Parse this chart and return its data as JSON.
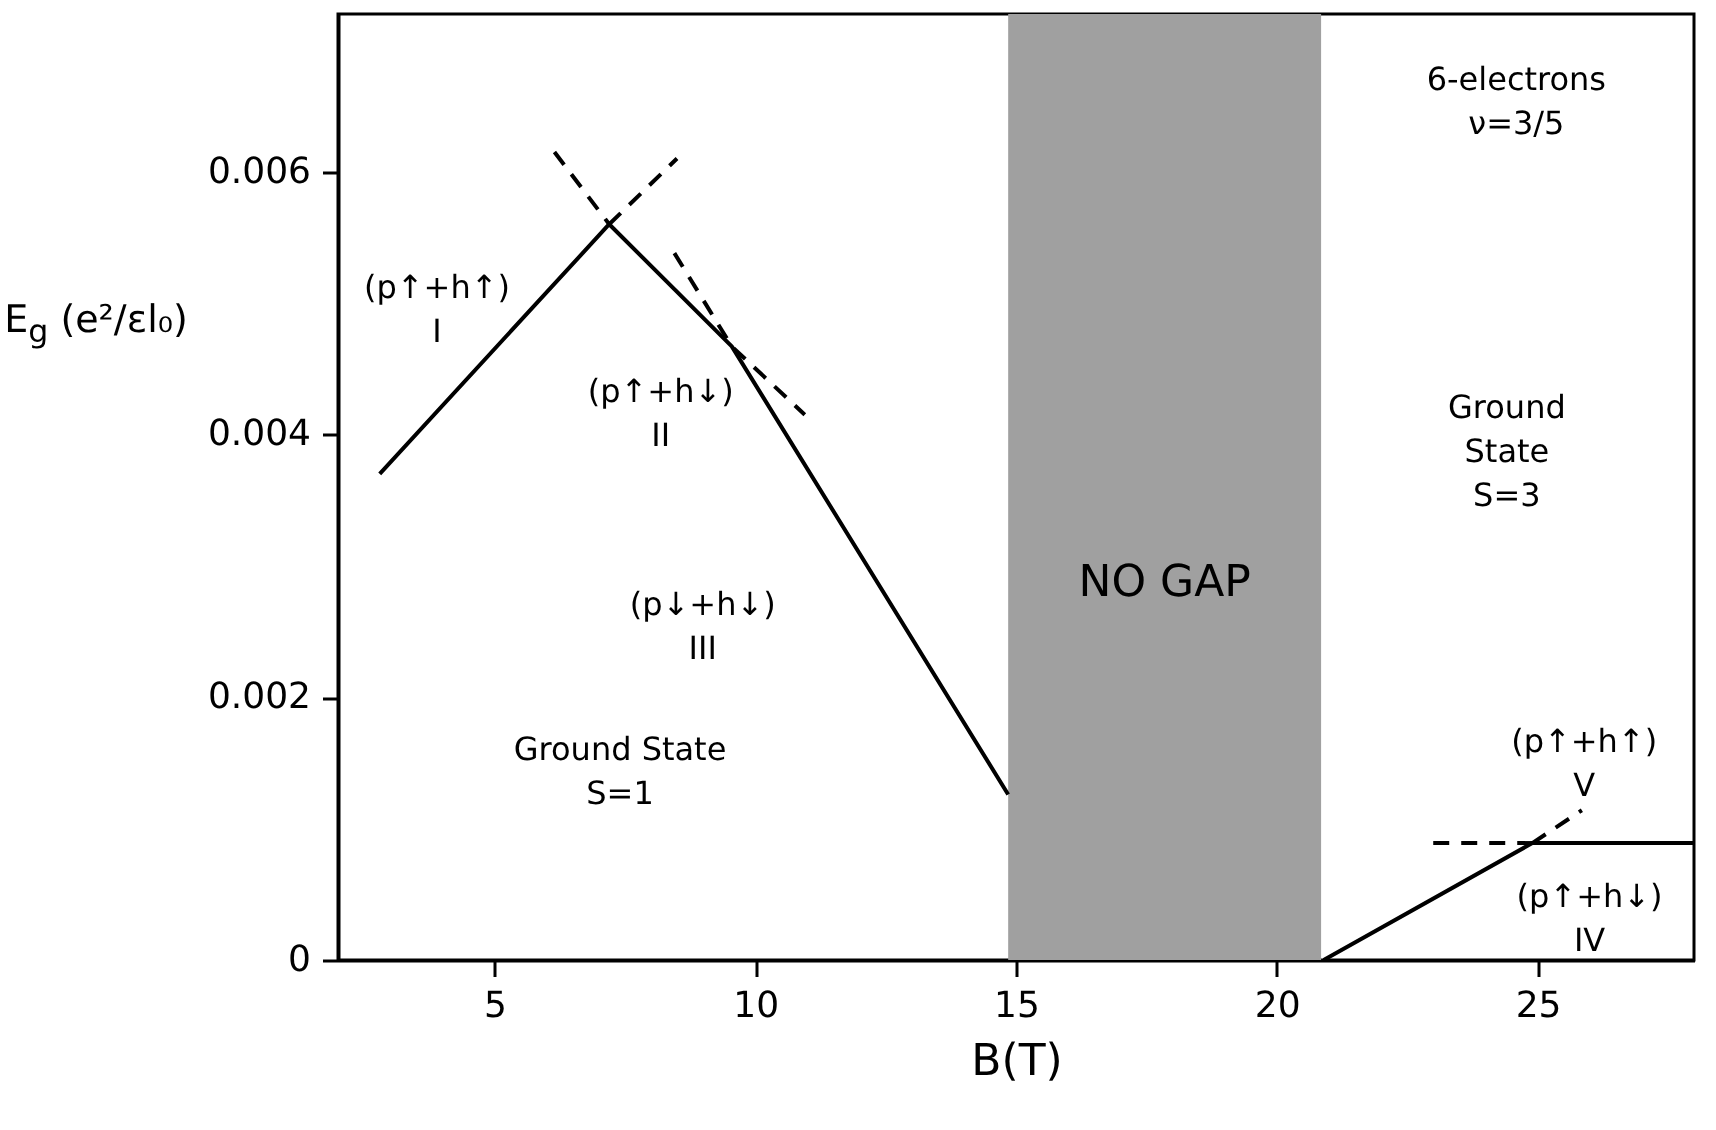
{
  "chart_data": {
    "type": "line",
    "xlabel": "B(T)",
    "ylabel": "E$_{g}$ (e²/εl₀)",
    "xlim": [
      2,
      28
    ],
    "xticks": [
      5,
      10,
      15,
      20,
      25
    ],
    "ylim": [
      0,
      0.0072
    ],
    "yticks": [
      0,
      0.002,
      0.004,
      0.006
    ],
    "series": [
      {
        "color": "#000000",
        "line_style": "solid",
        "x": [
          2.8,
          7.2,
          9.55,
          14.85
        ],
        "values": [
          0.0037,
          0.0056,
          0.00467,
          0.00126
        ]
      },
      {
        "color": "#000000",
        "line_style": "dashed",
        "x": [
          6.15,
          7.2
        ],
        "values": [
          0.00615,
          0.0056
        ]
      },
      {
        "color": "#000000",
        "line_style": "dashed",
        "x": [
          7.2,
          8.5
        ],
        "values": [
          0.0056,
          0.0061
        ]
      },
      {
        "color": "#000000",
        "line_style": "dashed",
        "x": [
          8.45,
          9.55,
          10.95
        ],
        "values": [
          0.00538,
          0.00467,
          0.00415
        ]
      },
      {
        "color": "#000000",
        "line_style": "solid",
        "x": [
          20.9,
          24.9,
          28
        ],
        "values": [
          0,
          0.00089,
          0.00089
        ]
      },
      {
        "color": "#000000",
        "line_style": "dashed",
        "x": [
          23.0,
          24.9
        ],
        "values": [
          0.00089,
          0.00089
        ]
      },
      {
        "color": "#000000",
        "line_style": "dashed",
        "x": [
          24.9,
          25.85
        ],
        "values": [
          0.00089,
          0.00114
        ]
      }
    ],
    "bands": [
      {
        "axis": "x",
        "from": 14.85,
        "to": 20.85,
        "label": "NO GAP",
        "color": "#a0a0a0"
      }
    ],
    "annotations": [
      "(p↑+h↑)\nI",
      "(p↑+h↓)\nII",
      "(p↓+h↓)\nIII",
      "(p↑+h↑)\nV",
      "(p↑+h↓)\nIV",
      "6-electrons\nν=3/5",
      "Ground State\nS=1",
      "Ground\nState\nS=3"
    ]
  }
}
